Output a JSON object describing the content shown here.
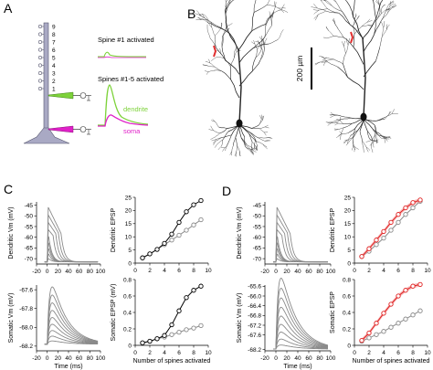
{
  "panels": {
    "A": "A",
    "B": "B",
    "C": "C",
    "D": "D"
  },
  "panelA": {
    "spine_numbers": [
      "9",
      "8",
      "7",
      "6",
      "5",
      "4",
      "3",
      "2",
      "1"
    ],
    "label_spine1": "Spine #1 activated",
    "label_spines15": "Spines #1-5 activated",
    "label_dendrite": "dendrite",
    "label_soma": "soma",
    "colors": {
      "dendrite": "#7dd23a",
      "soma": "#e020c8",
      "neuron": "#a9a9c4",
      "neuron_dark": "#56566e"
    }
  },
  "panelB": {
    "scale_label": "200 µm",
    "morph_color": "#222222",
    "highlight_color": "#e03030"
  },
  "panelC": {
    "trace_ylabel_top": "Dendritic Vm (mV)",
    "trace_ylabel_bottom": "Somatic Vm (mV)",
    "trace_xlabel": "Time (ms)",
    "epsp_ylabel_top": "Dendritic EPSP",
    "epsp_ylabel_bottom": "Somatic EPSP (mV)",
    "epsp_xlabel": "Number of spines activated",
    "trace_top_yticks": [
      "-45",
      "-50",
      "-55",
      "-60",
      "-65",
      "-70"
    ],
    "trace_bottom_yticks": [
      "-67.6",
      "-67.8",
      "-68.0",
      "-68.2"
    ],
    "trace_xticks": [
      "-20",
      "0",
      "20",
      "40",
      "60",
      "80",
      "100"
    ],
    "epsp_top_yticks": [
      "0",
      "5",
      "10",
      "15",
      "20",
      "25"
    ],
    "epsp_bottom_yticks": [
      "0",
      "0.2",
      "0.4",
      "0.6",
      "0.8"
    ],
    "epsp_xticks": [
      "0",
      "2",
      "4",
      "6",
      "8",
      "10"
    ]
  },
  "panelD": {
    "trace_ylabel_top": "Dendritic Vm (mV)",
    "trace_ylabel_bottom": "Somatic Vm (mV)",
    "trace_xlabel": "Time (ms)",
    "epsp_ylabel_top": "Dendritic EPSP",
    "epsp_ylabel_bottom": "Somatic EPSP",
    "epsp_xlabel": "Number of spines activated",
    "trace_top_yticks": [
      "-45",
      "-50",
      "-55",
      "-60",
      "-65",
      "-70"
    ],
    "trace_bottom_yticks": [
      "-65.6",
      "-66.0",
      "-66.4",
      "-66.8",
      "-67.2",
      "-67.6",
      "-68.2"
    ],
    "trace_xticks": [
      "-20",
      "0",
      "20",
      "40",
      "60",
      "80",
      "100"
    ],
    "epsp_top_yticks": [
      "0",
      "5",
      "10",
      "15",
      "20",
      "25"
    ],
    "epsp_bottom_yticks": [
      "0",
      "0.2",
      "0.4",
      "0.6",
      "0.8"
    ],
    "epsp_xticks": [
      "0",
      "2",
      "4",
      "6",
      "8",
      "10"
    ]
  },
  "chart_data": [
    {
      "panel": "C",
      "type": "line",
      "ylabel": "Dendritic EPSP",
      "xlabel": "Number of spines activated",
      "xlim": [
        0,
        10
      ],
      "ylim": [
        0,
        25
      ],
      "x": [
        1,
        2,
        3,
        4,
        5,
        6,
        7,
        8,
        9
      ],
      "series": [
        {
          "values": [
            2,
            3.5,
            5.2,
            7.5,
            11,
            15.5,
            19.5,
            22.2,
            23.8
          ],
          "color": "#000000"
        },
        {
          "values": [
            2,
            3.5,
            5.2,
            7,
            8.8,
            10.6,
            12.5,
            14.5,
            16.5
          ],
          "color": "#8a8a8a"
        }
      ]
    },
    {
      "panel": "C",
      "type": "line",
      "ylabel": "Somatic EPSP (mV)",
      "xlabel": "Number of spines activated",
      "xlim": [
        0,
        10
      ],
      "ylim": [
        0,
        0.8
      ],
      "x": [
        1,
        2,
        3,
        4,
        5,
        6,
        7,
        8,
        9
      ],
      "series": [
        {
          "values": [
            0.03,
            0.05,
            0.08,
            0.12,
            0.25,
            0.42,
            0.58,
            0.67,
            0.72
          ],
          "color": "#000000"
        },
        {
          "values": [
            0.03,
            0.05,
            0.08,
            0.1,
            0.13,
            0.16,
            0.19,
            0.21,
            0.24
          ],
          "color": "#8a8a8a"
        }
      ]
    },
    {
      "panel": "D",
      "type": "line",
      "ylabel": "Dendritic EPSP",
      "xlabel": "Number of spines activated",
      "xlim": [
        0,
        10
      ],
      "ylim": [
        0,
        25
      ],
      "x": [
        1,
        2,
        3,
        4,
        5,
        6,
        7,
        8,
        9
      ],
      "series": [
        {
          "values": [
            2.5,
            5.5,
            8.8,
            12,
            15.5,
            18.5,
            21,
            23,
            24
          ],
          "color": "#e02020"
        },
        {
          "values": [
            2.5,
            4.5,
            7,
            9.5,
            12.5,
            15.5,
            18.5,
            21,
            23.5
          ],
          "color": "#8a8a8a"
        }
      ]
    },
    {
      "panel": "D",
      "type": "line",
      "ylabel": "Somatic EPSP",
      "xlabel": "Number of spines activated",
      "xlim": [
        0,
        10
      ],
      "ylim": [
        0,
        0.8
      ],
      "x": [
        1,
        2,
        3,
        4,
        5,
        6,
        7,
        8,
        9
      ],
      "series": [
        {
          "values": [
            0.06,
            0.15,
            0.27,
            0.39,
            0.5,
            0.6,
            0.67,
            0.72,
            0.74
          ],
          "color": "#e02020"
        },
        {
          "values": [
            0.05,
            0.09,
            0.13,
            0.17,
            0.22,
            0.27,
            0.32,
            0.37,
            0.42
          ],
          "color": "#8a8a8a"
        }
      ]
    }
  ]
}
